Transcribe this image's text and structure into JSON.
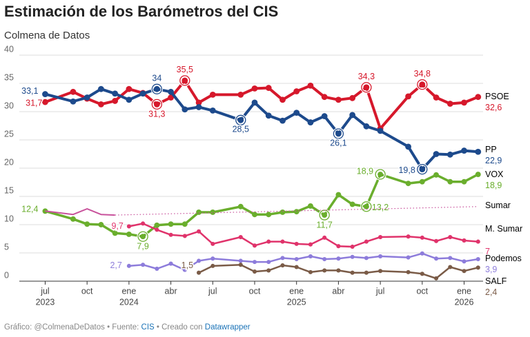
{
  "chart_data": {
    "type": "line",
    "title": "Estimación de los Barómetros del CIS",
    "subtitle": "Colmena de Datos",
    "footer": [
      "Gráfico: @ColmenaDeDatos • Fuente: ",
      "CIS",
      " • Creado con ",
      "Datawrapper"
    ],
    "x": [
      "2023-07",
      "2023-09",
      "2023-10",
      "2023-11",
      "2023-12",
      "2024-01",
      "2024-02",
      "2024-03",
      "2024-04",
      "2024-05",
      "2024-06",
      "2024-07",
      "2024-09",
      "2024-10",
      "2024-11",
      "2024-12",
      "2025-01",
      "2025-02",
      "2025-03",
      "2025-04",
      "2025-05",
      "2025-06",
      "2025-07",
      "2025-09",
      "2025-10",
      "2025-11",
      "2025-12",
      "2026-01",
      "2026-02"
    ],
    "xlim": [
      "2023-05",
      "2026-03"
    ],
    "xticks": [
      {
        "value": "2023-07",
        "label": "jul",
        "year": "2023"
      },
      {
        "value": "2023-10",
        "label": "oct"
      },
      {
        "value": "2024-01",
        "label": "ene",
        "year": "2024"
      },
      {
        "value": "2024-04",
        "label": "abr"
      },
      {
        "value": "2024-07",
        "label": "jul"
      },
      {
        "value": "2024-10",
        "label": "oct"
      },
      {
        "value": "2025-01",
        "label": "ene",
        "year": "2025"
      },
      {
        "value": "2025-04",
        "label": "abr"
      },
      {
        "value": "2025-07",
        "label": "jul"
      },
      {
        "value": "2025-10",
        "label": "oct"
      },
      {
        "value": "2026-01",
        "label": "ene",
        "year": "2026"
      }
    ],
    "ylim": [
      0,
      40
    ],
    "yticks": [
      0,
      5,
      10,
      15,
      20,
      25,
      30,
      35,
      40
    ],
    "grid": true,
    "series": [
      {
        "name": "PSOE",
        "color": "#d6182b",
        "values": [
          31.7,
          33.5,
          32.3,
          31.3,
          31.9,
          34.0,
          33.3,
          31.3,
          32.5,
          35.5,
          31.6,
          33.0,
          33.0,
          34.1,
          34.2,
          32.1,
          33.6,
          34.6,
          32.6,
          32.1,
          32.4,
          34.3,
          27.0,
          32.7,
          34.8,
          32.5,
          31.4,
          31.6,
          32.6
        ],
        "value_labels": [
          "31,7",
          null,
          null,
          null,
          null,
          null,
          null,
          "31,3",
          null,
          "35,5",
          null,
          null,
          null,
          null,
          null,
          null,
          null,
          null,
          null,
          null,
          null,
          "34,3",
          null,
          null,
          "34,8",
          null,
          null,
          null,
          "32,6"
        ]
      },
      {
        "name": "PP",
        "color": "#1d4a8c",
        "values": [
          33.1,
          31.8,
          32.5,
          34.0,
          33.2,
          32.1,
          33.2,
          34,
          33.5,
          30.4,
          30.8,
          30.2,
          28.5,
          31.6,
          29.3,
          28.4,
          29.8,
          28.1,
          29.2,
          26.1,
          29.4,
          27.4,
          26.6,
          23.8,
          19.8,
          22.5,
          22.4,
          23.1,
          22.9
        ],
        "value_labels": [
          "33,1",
          null,
          null,
          null,
          null,
          null,
          null,
          "34",
          null,
          null,
          null,
          null,
          "28,5",
          null,
          null,
          null,
          null,
          null,
          null,
          "26,1",
          null,
          null,
          null,
          null,
          "19,8",
          null,
          null,
          null,
          "22,9"
        ]
      },
      {
        "name": "VOX",
        "color": "#6aae2d",
        "values": [
          12.4,
          11.0,
          10.1,
          10.0,
          8.5,
          8.3,
          7.9,
          9.9,
          10.1,
          10.1,
          12.2,
          12.2,
          13.2,
          11.8,
          11.8,
          12.2,
          12.3,
          13.3,
          11.7,
          15.3,
          13.6,
          13.2,
          18.9,
          17.3,
          17.6,
          18.8,
          17.6,
          17.6,
          18.9
        ],
        "value_labels": [
          "12,4",
          null,
          null,
          null,
          null,
          null,
          "7,9",
          null,
          null,
          null,
          null,
          null,
          null,
          null,
          null,
          null,
          null,
          null,
          "11,7",
          null,
          null,
          "13,2",
          "18,9",
          null,
          null,
          null,
          null,
          null,
          "18,9"
        ]
      },
      {
        "name": "Sumar",
        "color": "#c8519b",
        "values": [
          12.4,
          11.8,
          12.8,
          11.8,
          11.7,
          null,
          null,
          null,
          null,
          null,
          null,
          null,
          null,
          null,
          null,
          null,
          null,
          null,
          null,
          null,
          null,
          null,
          null,
          null,
          null,
          null,
          null,
          null,
          13.2
        ]
      },
      {
        "name": "M. Sumar",
        "color": "#e0336b",
        "values": [
          null,
          null,
          null,
          null,
          null,
          9.7,
          10.2,
          9.1,
          8.2,
          8.0,
          8.8,
          6.6,
          7.8,
          6.3,
          7.0,
          7.0,
          6.6,
          6.5,
          7.7,
          6.2,
          6.1,
          7.0,
          7.8,
          7.9,
          7.7,
          7.1,
          7.8,
          7.2,
          7
        ],
        "value_labels": [
          null,
          null,
          null,
          null,
          null,
          "9,7",
          null,
          null,
          null,
          null,
          null,
          null,
          null,
          null,
          null,
          null,
          null,
          null,
          null,
          null,
          null,
          null,
          null,
          null,
          null,
          null,
          null,
          null,
          "7"
        ]
      },
      {
        "name": "Podemos",
        "color": "#8d7cdb",
        "values": [
          null,
          null,
          null,
          null,
          null,
          2.7,
          2.9,
          2.2,
          3.1,
          2.0,
          3.6,
          4.0,
          3.6,
          3.4,
          3.4,
          4.1,
          3.9,
          4.4,
          3.9,
          4.0,
          4.3,
          4.1,
          4.4,
          4.2,
          4.9,
          4.0,
          4.1,
          3.5,
          3.9
        ],
        "value_labels": [
          null,
          null,
          null,
          null,
          null,
          "2,7",
          null,
          null,
          null,
          null,
          null,
          null,
          null,
          null,
          null,
          null,
          null,
          null,
          null,
          null,
          null,
          null,
          null,
          null,
          null,
          null,
          null,
          null,
          "3,9"
        ]
      },
      {
        "name": "SALF",
        "color": "#7a5b47",
        "values": [
          null,
          null,
          null,
          null,
          null,
          null,
          null,
          null,
          null,
          null,
          1.5,
          2.7,
          2.9,
          1.7,
          1.9,
          2.8,
          2.5,
          1.6,
          1.9,
          1.9,
          1.5,
          1.5,
          1.8,
          1.6,
          1.3,
          0.5,
          2.5,
          1.8,
          2.4
        ],
        "value_labels": [
          null,
          null,
          null,
          null,
          null,
          null,
          null,
          null,
          null,
          null,
          "1,5",
          null,
          null,
          null,
          null,
          null,
          null,
          null,
          null,
          null,
          null,
          null,
          null,
          null,
          null,
          null,
          null,
          null,
          "2,4"
        ]
      }
    ]
  }
}
